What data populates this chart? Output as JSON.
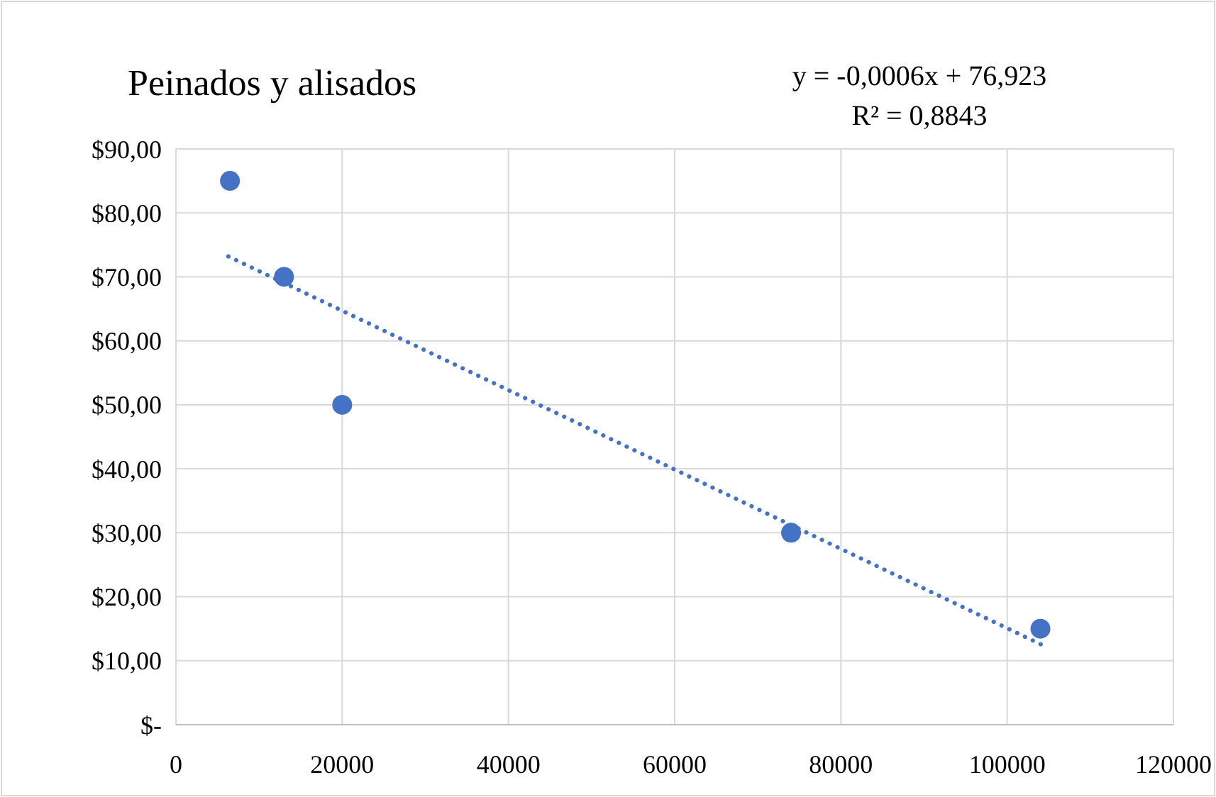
{
  "chart_data": {
    "type": "scatter",
    "title": "Peinados y alisados",
    "annotations": [
      "y = -0,0006x + 76,923",
      "R² = 0,8843"
    ],
    "xlim": [
      0,
      120000
    ],
    "xticks": [
      0,
      20000,
      40000,
      60000,
      80000,
      100000,
      120000
    ],
    "ylim": [
      0,
      90
    ],
    "yticks": [
      {
        "value": 0,
        "label": "$-"
      },
      {
        "value": 10,
        "label": "$10,00"
      },
      {
        "value": 20,
        "label": "$20,00"
      },
      {
        "value": 30,
        "label": "$30,00"
      },
      {
        "value": 40,
        "label": "$40,00"
      },
      {
        "value": 50,
        "label": "$50,00"
      },
      {
        "value": 60,
        "label": "$60,00"
      },
      {
        "value": 70,
        "label": "$70,00"
      },
      {
        "value": 80,
        "label": "$80,00"
      },
      {
        "value": 90,
        "label": "$90,00"
      }
    ],
    "grid": true,
    "series": [
      {
        "marker": "circle",
        "color": "#4472c4",
        "x": [
          6500,
          13000,
          20000,
          74000,
          104000
        ],
        "values": [
          85,
          70,
          50,
          30,
          15
        ]
      },
      {
        "type": "line",
        "color": "#4472c4",
        "line_style": "dotted",
        "x": [
          6300,
          104300
        ],
        "values": [
          73.2,
          12.4
        ]
      }
    ]
  }
}
